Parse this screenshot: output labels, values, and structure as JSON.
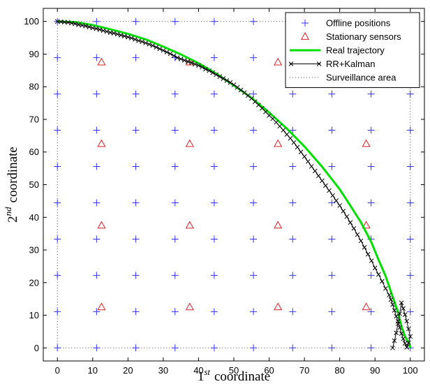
{
  "chart_data": {
    "type": "line",
    "xlabel": {
      "base": "1",
      "sup": "st",
      "rest": "coordinate"
    },
    "ylabel": {
      "base": "2",
      "sup": "nd",
      "rest": "coordinate"
    },
    "xlim": [
      -4,
      104
    ],
    "ylim": [
      -4,
      104
    ],
    "xticks": [
      0,
      10,
      20,
      30,
      40,
      50,
      60,
      70,
      80,
      90,
      100
    ],
    "yticks": [
      0,
      10,
      20,
      30,
      40,
      50,
      60,
      70,
      80,
      90,
      100
    ],
    "grid": false,
    "legend_position": "top-right",
    "colors": {
      "offline": "#3333ff",
      "sensors": "#e02020",
      "real": "#00e000",
      "kalman": "#000000",
      "area": "#555555"
    },
    "legend": [
      {
        "key": "offline",
        "label": "Offline positions",
        "marker": "plus"
      },
      {
        "key": "sensors",
        "label": "Stationary sensors",
        "marker": "triangle"
      },
      {
        "key": "real",
        "label": "Real trajectory",
        "marker": "line"
      },
      {
        "key": "kalman",
        "label": "RR+Kalman",
        "marker": "line-x"
      },
      {
        "key": "area",
        "label": "Surveillance area",
        "marker": "dotted"
      }
    ],
    "offline_grid": {
      "x": [
        0,
        11.11,
        22.22,
        33.33,
        44.44,
        55.56,
        66.67,
        77.78,
        88.89,
        100
      ],
      "y": [
        0,
        11.11,
        22.22,
        33.33,
        44.44,
        55.56,
        66.67,
        77.78,
        88.89,
        100
      ]
    },
    "sensors": {
      "x": [
        12.5,
        37.5,
        62.5,
        87.5
      ],
      "y": [
        12.5,
        37.5,
        62.5,
        87.5
      ]
    },
    "surveillance_area": {
      "x": [
        0,
        100,
        100,
        0,
        0
      ],
      "y": [
        0,
        0,
        100,
        100,
        0
      ]
    },
    "real_trajectory": {
      "x": [
        0,
        5,
        10,
        15,
        20,
        25,
        30,
        35,
        40,
        45,
        50,
        55,
        60,
        65,
        70,
        75,
        80,
        83,
        86,
        89,
        91,
        93,
        95,
        96.5,
        97.5,
        98.5,
        99.2,
        99.7,
        100
      ],
      "y": [
        100,
        99.8,
        98.9,
        97.6,
        96.2,
        94.5,
        92.3,
        89.9,
        87.2,
        84,
        80.4,
        76.6,
        72.1,
        67.2,
        61.7,
        55.5,
        48.6,
        43.6,
        38.5,
        32.3,
        27,
        22,
        15.7,
        11,
        6.6,
        3.6,
        2.2,
        1.3,
        0
      ]
    },
    "kalman": {
      "x": [
        0,
        1,
        2,
        3,
        4,
        5,
        6,
        7,
        8,
        9,
        10,
        11,
        12,
        13,
        14,
        15,
        16,
        17,
        18,
        19,
        20,
        21,
        22,
        23,
        24,
        25,
        26,
        27,
        28,
        29,
        30,
        31,
        32,
        33,
        34,
        35,
        36,
        37,
        38,
        39,
        40,
        41,
        42,
        43,
        44,
        45,
        46,
        47,
        48,
        49,
        50,
        51,
        52,
        53,
        54,
        55,
        56,
        57,
        58,
        59,
        60,
        61,
        62,
        63,
        64,
        65,
        66,
        67,
        68,
        69,
        70,
        71,
        72,
        73,
        74,
        75,
        76,
        77,
        78,
        79,
        80,
        81,
        82,
        83,
        84,
        85,
        86,
        87,
        88,
        89,
        90,
        91,
        92,
        93,
        94,
        94.5,
        95,
        95.5,
        96,
        96.5,
        97,
        97.5,
        98,
        98.5,
        99,
        99.5,
        100,
        99.5,
        99,
        98.5,
        98,
        97.5,
        97,
        96.5,
        96,
        95.5,
        95
      ],
      "y": [
        100,
        99.9,
        99.8,
        99.7,
        99.5,
        99.3,
        99,
        98.8,
        98.6,
        98.3,
        98,
        97.8,
        97.5,
        97.2,
        96.9,
        96.6,
        96.4,
        96.1,
        95.8,
        95.5,
        95.2,
        94.9,
        94.5,
        94.1,
        93.8,
        93.4,
        93,
        92.6,
        92.1,
        91.6,
        91.1,
        90.6,
        90.1,
        89.5,
        88.9,
        88.5,
        88.1,
        87.7,
        87.3,
        86.9,
        86.5,
        86,
        85.4,
        84.9,
        84.3,
        83.7,
        83.1,
        82.5,
        81.9,
        81.3,
        80.6,
        79.8,
        79,
        78.2,
        77.3,
        76.4,
        75.4,
        74.4,
        73.4,
        72.3,
        71.2,
        70.2,
        69.1,
        67.9,
        66.7,
        65.4,
        64.2,
        62.9,
        61.5,
        60,
        58.6,
        57.1,
        55.6,
        54.2,
        52.7,
        51.2,
        49.7,
        48.2,
        46.7,
        45.1,
        43.6,
        41.9,
        40.2,
        38.4,
        36.6,
        34.7,
        32.8,
        30.8,
        28.7,
        26.7,
        24.5,
        22.5,
        20.4,
        18.2,
        16.2,
        14.8,
        13.3,
        11.5,
        9.7,
        8.1,
        6.2,
        4.4,
        2.8,
        1.4,
        0.2,
        1.5,
        3.5,
        5.8,
        8.2,
        10.2,
        12.1,
        13.8,
        10.5,
        7.4,
        4.6,
        2.2,
        0
      ]
    }
  }
}
